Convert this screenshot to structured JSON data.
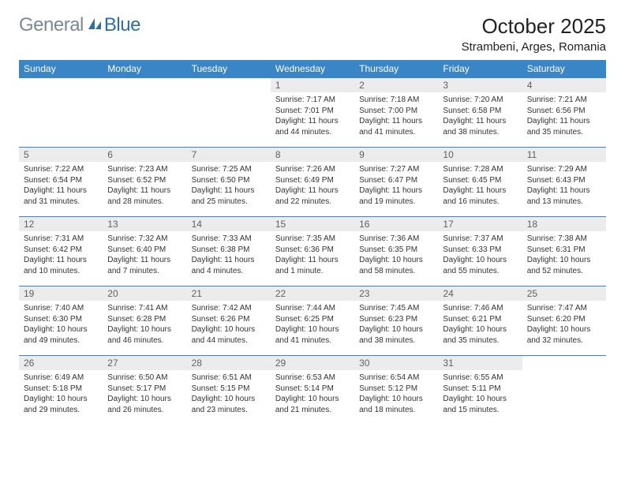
{
  "logo": {
    "text1": "General",
    "text2": "Blue"
  },
  "title": "October 2025",
  "location": "Strambeni, Arges, Romania",
  "colors": {
    "header_bg": "#3a85c6",
    "header_text": "#ffffff",
    "daynum_bg": "#ececec",
    "daynum_text": "#606060",
    "body_text": "#333333",
    "logo_gray": "#7a8a94",
    "logo_blue": "#2f6fa8",
    "rule": "#3a85c6"
  },
  "day_names": [
    "Sunday",
    "Monday",
    "Tuesday",
    "Wednesday",
    "Thursday",
    "Friday",
    "Saturday"
  ],
  "weeks": [
    [
      null,
      null,
      null,
      {
        "n": "1",
        "sr": "7:17 AM",
        "ss": "7:01 PM",
        "dl": "11 hours and 44 minutes."
      },
      {
        "n": "2",
        "sr": "7:18 AM",
        "ss": "7:00 PM",
        "dl": "11 hours and 41 minutes."
      },
      {
        "n": "3",
        "sr": "7:20 AM",
        "ss": "6:58 PM",
        "dl": "11 hours and 38 minutes."
      },
      {
        "n": "4",
        "sr": "7:21 AM",
        "ss": "6:56 PM",
        "dl": "11 hours and 35 minutes."
      }
    ],
    [
      {
        "n": "5",
        "sr": "7:22 AM",
        "ss": "6:54 PM",
        "dl": "11 hours and 31 minutes."
      },
      {
        "n": "6",
        "sr": "7:23 AM",
        "ss": "6:52 PM",
        "dl": "11 hours and 28 minutes."
      },
      {
        "n": "7",
        "sr": "7:25 AM",
        "ss": "6:50 PM",
        "dl": "11 hours and 25 minutes."
      },
      {
        "n": "8",
        "sr": "7:26 AM",
        "ss": "6:49 PM",
        "dl": "11 hours and 22 minutes."
      },
      {
        "n": "9",
        "sr": "7:27 AM",
        "ss": "6:47 PM",
        "dl": "11 hours and 19 minutes."
      },
      {
        "n": "10",
        "sr": "7:28 AM",
        "ss": "6:45 PM",
        "dl": "11 hours and 16 minutes."
      },
      {
        "n": "11",
        "sr": "7:29 AM",
        "ss": "6:43 PM",
        "dl": "11 hours and 13 minutes."
      }
    ],
    [
      {
        "n": "12",
        "sr": "7:31 AM",
        "ss": "6:42 PM",
        "dl": "11 hours and 10 minutes."
      },
      {
        "n": "13",
        "sr": "7:32 AM",
        "ss": "6:40 PM",
        "dl": "11 hours and 7 minutes."
      },
      {
        "n": "14",
        "sr": "7:33 AM",
        "ss": "6:38 PM",
        "dl": "11 hours and 4 minutes."
      },
      {
        "n": "15",
        "sr": "7:35 AM",
        "ss": "6:36 PM",
        "dl": "11 hours and 1 minute."
      },
      {
        "n": "16",
        "sr": "7:36 AM",
        "ss": "6:35 PM",
        "dl": "10 hours and 58 minutes."
      },
      {
        "n": "17",
        "sr": "7:37 AM",
        "ss": "6:33 PM",
        "dl": "10 hours and 55 minutes."
      },
      {
        "n": "18",
        "sr": "7:38 AM",
        "ss": "6:31 PM",
        "dl": "10 hours and 52 minutes."
      }
    ],
    [
      {
        "n": "19",
        "sr": "7:40 AM",
        "ss": "6:30 PM",
        "dl": "10 hours and 49 minutes."
      },
      {
        "n": "20",
        "sr": "7:41 AM",
        "ss": "6:28 PM",
        "dl": "10 hours and 46 minutes."
      },
      {
        "n": "21",
        "sr": "7:42 AM",
        "ss": "6:26 PM",
        "dl": "10 hours and 44 minutes."
      },
      {
        "n": "22",
        "sr": "7:44 AM",
        "ss": "6:25 PM",
        "dl": "10 hours and 41 minutes."
      },
      {
        "n": "23",
        "sr": "7:45 AM",
        "ss": "6:23 PM",
        "dl": "10 hours and 38 minutes."
      },
      {
        "n": "24",
        "sr": "7:46 AM",
        "ss": "6:21 PM",
        "dl": "10 hours and 35 minutes."
      },
      {
        "n": "25",
        "sr": "7:47 AM",
        "ss": "6:20 PM",
        "dl": "10 hours and 32 minutes."
      }
    ],
    [
      {
        "n": "26",
        "sr": "6:49 AM",
        "ss": "5:18 PM",
        "dl": "10 hours and 29 minutes."
      },
      {
        "n": "27",
        "sr": "6:50 AM",
        "ss": "5:17 PM",
        "dl": "10 hours and 26 minutes."
      },
      {
        "n": "28",
        "sr": "6:51 AM",
        "ss": "5:15 PM",
        "dl": "10 hours and 23 minutes."
      },
      {
        "n": "29",
        "sr": "6:53 AM",
        "ss": "5:14 PM",
        "dl": "10 hours and 21 minutes."
      },
      {
        "n": "30",
        "sr": "6:54 AM",
        "ss": "5:12 PM",
        "dl": "10 hours and 18 minutes."
      },
      {
        "n": "31",
        "sr": "6:55 AM",
        "ss": "5:11 PM",
        "dl": "10 hours and 15 minutes."
      },
      null
    ]
  ],
  "labels": {
    "sunrise": "Sunrise:",
    "sunset": "Sunset:",
    "daylight": "Daylight:"
  }
}
